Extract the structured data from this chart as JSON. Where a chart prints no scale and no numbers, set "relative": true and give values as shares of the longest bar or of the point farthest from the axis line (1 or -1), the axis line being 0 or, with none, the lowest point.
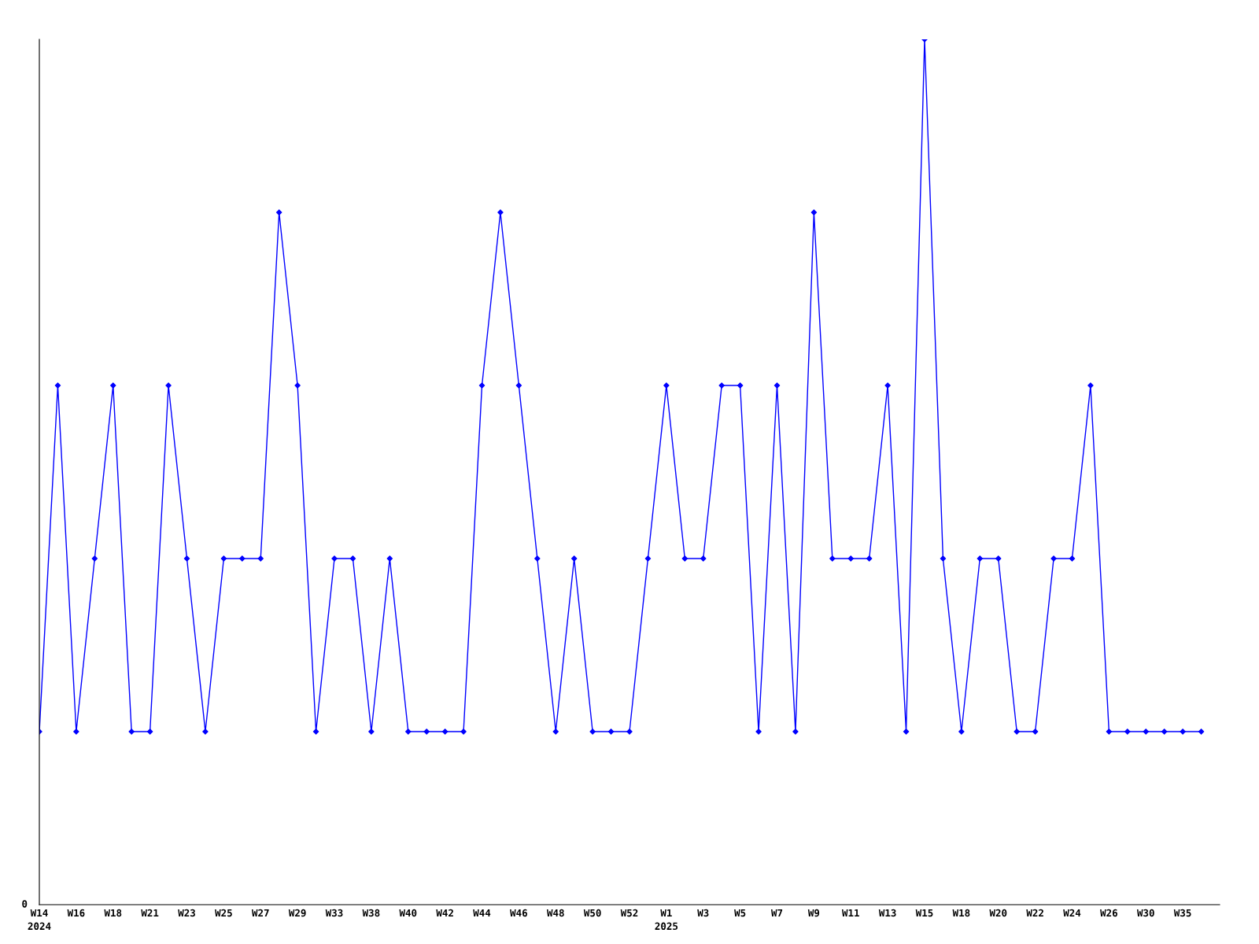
{
  "chart_data": {
    "type": "line",
    "relative": true,
    "marker": "diamond",
    "line_style": "solid",
    "grid": false,
    "legend": false,
    "categories": [
      "W14\n2024",
      null,
      "W16",
      null,
      "W18",
      null,
      "W21",
      null,
      "W23",
      null,
      "W25",
      null,
      "W27",
      null,
      "W29",
      null,
      "W33",
      null,
      "W38",
      null,
      "W40",
      null,
      "W42",
      null,
      "W44",
      null,
      "W46",
      null,
      "W48",
      null,
      "W50",
      null,
      "W52",
      null,
      "W1\n2025",
      null,
      "W3",
      null,
      "W5",
      null,
      "W7",
      null,
      "W9",
      null,
      "W11",
      null,
      "W13",
      null,
      "W15",
      null,
      "W18",
      null,
      "W20",
      null,
      "W22",
      null,
      "W24",
      null,
      "W26",
      null,
      "W30",
      null,
      "W35",
      null
    ],
    "series": [
      {
        "color": "#0000ff",
        "values": [
          0.2,
          0.6,
          0.2,
          0.4,
          0.6,
          0.2,
          0.2,
          0.6,
          0.4,
          0.2,
          0.4,
          0.4,
          0.4,
          0.8,
          0.6,
          0.2,
          0.4,
          0.4,
          0.2,
          0.4,
          0.2,
          0.2,
          0.2,
          0.2,
          0.6,
          0.8,
          0.6,
          0.4,
          0.2,
          0.4,
          0.2,
          0.2,
          0.2,
          0.4,
          0.6,
          0.4,
          0.4,
          0.6,
          0.6,
          0.2,
          0.6,
          0.2,
          0.8,
          0.4,
          0.4,
          0.4,
          0.6,
          0.2,
          1.0,
          0.4,
          0.2,
          0.4,
          0.4,
          0.2,
          0.2,
          0.4,
          0.4,
          0.6,
          0.2,
          0.2,
          0.2,
          0.2,
          0.2,
          0.2
        ]
      }
    ],
    "annotations": [
      "0"
    ]
  }
}
